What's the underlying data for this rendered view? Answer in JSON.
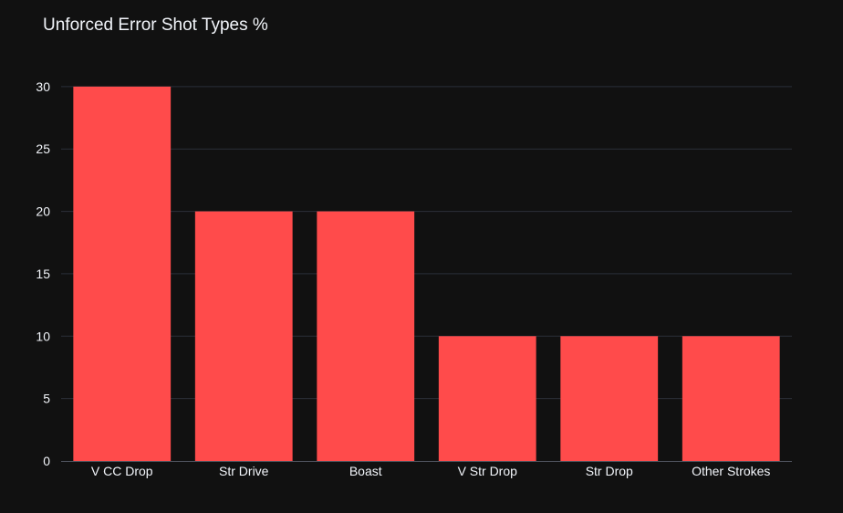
{
  "chart_data": {
    "type": "bar",
    "title": "Unforced Error Shot Types %",
    "xlabel": "",
    "ylabel": "",
    "categories": [
      "V CC Drop",
      "Str Drive",
      "Boast",
      "V Str Drop",
      "Str Drop",
      "Other Strokes"
    ],
    "values": [
      30,
      20,
      20,
      10,
      10,
      10
    ],
    "ylim": [
      0,
      31.6
    ],
    "yticks": [
      0,
      5,
      10,
      15,
      20,
      25,
      30
    ],
    "grid": true,
    "legend": "none",
    "colors": {
      "bar": "#ff4b4b",
      "background": "#111111",
      "grid": "#2b2f38",
      "text": "#f2f5fa"
    }
  }
}
